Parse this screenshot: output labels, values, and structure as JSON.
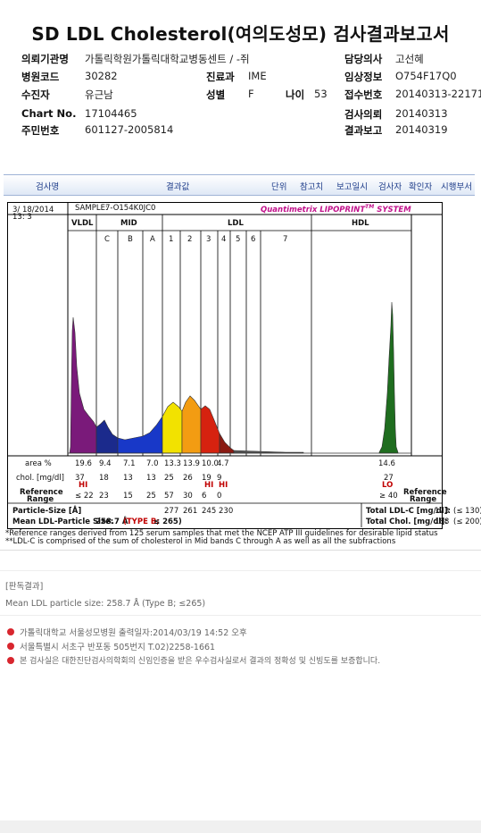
{
  "title": "SD LDL Cholesterol(여의도성모) 검사결과보고서",
  "patient": {
    "institution_label": "의뢰기관명",
    "institution": "가톨릭학원가톨릭대학교병동센트 / -쥐",
    "doctor_label": "담당의사",
    "doctor": "고선혜",
    "hospital_code_label": "병원코드",
    "hospital_code": "30282",
    "dept_label": "진료과",
    "dept": "IME",
    "clinical_label": "임상정보",
    "clinical": "O754F17Q0",
    "examinee_label": "수진자",
    "examinee": "유근남",
    "sex_label": "성별",
    "sex": "F",
    "age_label": "나이",
    "age": "53",
    "receipt_label": "접수번호",
    "receipt": "20140313-22171",
    "chart_label": "Chart No.",
    "chart": "17104465",
    "request_label": "검사의뢰",
    "request": "20140313",
    "id_label": "주민번호",
    "id": "601127-2005814",
    "report_label": "결과보고",
    "report": "20140319"
  },
  "header_bar": {
    "col1": "검사명",
    "col2": "결과값",
    "col3": "단위",
    "col4": "참고치",
    "col5": "보고일시",
    "col6": "검사자",
    "col7": "확인자",
    "col8": "시행부서"
  },
  "report": {
    "date": "3/ 18/2014",
    "time": "13: 3",
    "sample_label": "SAMPLE:",
    "sample": "7-O154K0JC0",
    "brand": "Quantimetrix LIPOPRINT",
    "brand_tm": "TM",
    "brand_system": "SYSTEM",
    "bands_top": {
      "vldl": "VLDL",
      "mid": "MID",
      "ldl": "LDL",
      "hdl": "HDL"
    },
    "bands_sub": [
      "C",
      "B",
      "A",
      "1",
      "2",
      "3",
      "4",
      "5",
      "6",
      "7"
    ],
    "area_label": "area %",
    "area": [
      "19.6",
      "9.4",
      "7.1",
      "7.0",
      "13.3",
      "13.9",
      "10.0",
      "4.7"
    ],
    "area_hdl": "14.6",
    "chol_label": "chol. [mg/dl]",
    "chol": [
      "37",
      "18",
      "13",
      "13",
      "25",
      "26",
      "19",
      "9"
    ],
    "chol_hdl": "27",
    "chol_flag_vldl": "HI",
    "chol_flag_3": "HI",
    "chol_flag_4": "HI",
    "chol_flag_hdl": "LO",
    "ref_label_l1": "Reference",
    "ref_label_l2": "Range",
    "ref": [
      "≤ 22",
      "23",
      "15",
      "25",
      "57",
      "30",
      "6",
      "0"
    ],
    "ref_hdl": "≥ 40",
    "ref_right_l1": "Reference",
    "ref_right_l2": "Range",
    "psize_label": "Particle-Size [Å]",
    "psize": [
      "277",
      "261",
      "245",
      "230"
    ],
    "total_ldl_label": "Total LDL-C [mg/dl]:",
    "total_ldl": "123",
    "total_ldl_ref": "(≤ 130)",
    "mean_label": "Mean LDL-Particle Size:",
    "mean_value": "258.7 Å",
    "mean_type": "(TYPE B;",
    "mean_type_ref": "≤ 265)",
    "total_chol_label": "Total Chol. [mg/dl]:",
    "total_chol": "188",
    "total_chol_ref": "(≤ 200)"
  },
  "footnote1": "*Reference ranges derived from 125 serum samples that met the NCEP ATP III guidelines for desirable lipid status",
  "footnote2": "**LDL-C is comprised of the sum of cholesterol in Mid bands C through A as well as all the subfractions",
  "judgement": {
    "heading": "[판독결과]",
    "text": "Mean LDL particle size: 258.7 Å (Type B; ≤265)"
  },
  "footer": {
    "line1": "가톨릭대학교 서울성모병원      출력일자:2014/03/19 14:52 오후",
    "line2": "서울특별시 서초구 반포동 505번지 T.02)2258-1661",
    "line3": "본 검사실은 대한진단검사의학회의 신임인증을 받은 우수검사실로서 결과의 정확성 및 신빙도를 보증합니다."
  },
  "colors": {
    "accent_red": "#d8262e",
    "purple": "#7a1a7a",
    "navy": "#1b2a8c",
    "blue": "#1838c8",
    "yellow": "#f2e200",
    "orange": "#f39c12",
    "red_band": "#d6220f",
    "hdl_green": "#1f6d1f"
  }
}
